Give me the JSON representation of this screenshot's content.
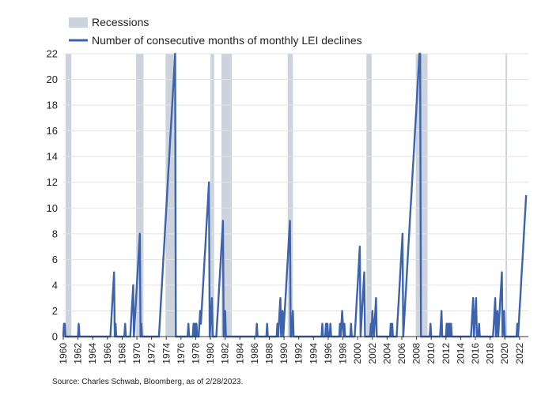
{
  "chart_data": {
    "type": "line",
    "title": "",
    "xlabel": "",
    "ylabel": "",
    "ylim": [
      0,
      22
    ],
    "yticks": [
      "0",
      "2",
      "4",
      "6",
      "8",
      "10",
      "12",
      "14",
      "16",
      "18",
      "20",
      "22"
    ],
    "xlim": [
      1960,
      2023.2
    ],
    "xticks": [
      "1960",
      "1962",
      "1964",
      "1966",
      "1968",
      "1970",
      "1972",
      "1974",
      "1976",
      "1978",
      "1980",
      "1982",
      "1984",
      "1986",
      "1988",
      "1990",
      "1992",
      "1994",
      "1996",
      "1998",
      "2000",
      "2002",
      "2004",
      "2006",
      "2008",
      "2010",
      "2012",
      "2014",
      "2016",
      "2018",
      "2020",
      "2022"
    ],
    "grid": "horizontal",
    "legend": {
      "placement": "top-left",
      "items": [
        {
          "label": "Recessions",
          "color": "#cdd3dc",
          "kind": "band"
        },
        {
          "label": "Number of consecutive months of monthly LEI declines",
          "color": "#3d63ad",
          "kind": "line"
        }
      ]
    },
    "recessions": [
      [
        1960.3,
        1961.1
      ],
      [
        1969.9,
        1970.9
      ],
      [
        1973.9,
        1975.2
      ],
      [
        1980.0,
        1980.5
      ],
      [
        1981.5,
        1982.9
      ],
      [
        1990.5,
        1991.2
      ],
      [
        2001.2,
        2001.9
      ],
      [
        2007.9,
        2009.5
      ],
      [
        2020.1,
        2020.3
      ]
    ],
    "series": [
      {
        "name": "Number of consecutive months of monthly LEI declines",
        "color": "#3d63ad",
        "points": [
          [
            1960.0,
            0
          ],
          [
            1960.1,
            1
          ],
          [
            1960.2,
            1
          ],
          [
            1960.3,
            0
          ],
          [
            1962.0,
            0
          ],
          [
            1962.1,
            1
          ],
          [
            1962.2,
            0
          ],
          [
            1966.4,
            0
          ],
          [
            1966.5,
            1
          ],
          [
            1966.6,
            2
          ],
          [
            1966.7,
            3
          ],
          [
            1966.8,
            4
          ],
          [
            1966.9,
            5
          ],
          [
            1967.0,
            0
          ],
          [
            1967.1,
            1
          ],
          [
            1967.2,
            0
          ],
          [
            1968.3,
            0
          ],
          [
            1968.4,
            1
          ],
          [
            1968.5,
            0
          ],
          [
            1969.1,
            0
          ],
          [
            1969.2,
            1
          ],
          [
            1969.3,
            2
          ],
          [
            1969.4,
            3
          ],
          [
            1969.5,
            4
          ],
          [
            1969.6,
            0
          ],
          [
            1969.7,
            1
          ],
          [
            1969.8,
            2
          ],
          [
            1969.9,
            3
          ],
          [
            1970.0,
            4
          ],
          [
            1970.1,
            5
          ],
          [
            1970.2,
            6
          ],
          [
            1970.3,
            7
          ],
          [
            1970.4,
            8
          ],
          [
            1970.5,
            0
          ],
          [
            1970.6,
            1
          ],
          [
            1970.7,
            0
          ],
          [
            1973.0,
            0
          ],
          [
            1973.1,
            1
          ],
          [
            1973.2,
            2
          ],
          [
            1973.3,
            3
          ],
          [
            1973.4,
            4
          ],
          [
            1973.5,
            5
          ],
          [
            1973.6,
            6
          ],
          [
            1973.7,
            7
          ],
          [
            1973.8,
            8
          ],
          [
            1973.9,
            9
          ],
          [
            1974.0,
            10
          ],
          [
            1974.1,
            11
          ],
          [
            1974.2,
            12
          ],
          [
            1974.3,
            13
          ],
          [
            1974.4,
            14
          ],
          [
            1974.5,
            15
          ],
          [
            1974.6,
            16
          ],
          [
            1974.7,
            17
          ],
          [
            1974.8,
            18
          ],
          [
            1974.9,
            19
          ],
          [
            1975.0,
            20
          ],
          [
            1975.1,
            21
          ],
          [
            1975.2,
            22
          ],
          [
            1975.3,
            0
          ],
          [
            1976.9,
            0
          ],
          [
            1977.0,
            1
          ],
          [
            1977.1,
            0
          ],
          [
            1977.6,
            0
          ],
          [
            1977.7,
            1
          ],
          [
            1977.8,
            0
          ],
          [
            1977.9,
            1
          ],
          [
            1978.0,
            0
          ],
          [
            1978.1,
            1
          ],
          [
            1978.2,
            0
          ],
          [
            1978.4,
            0
          ],
          [
            1978.5,
            1
          ],
          [
            1978.6,
            2
          ],
          [
            1978.7,
            1
          ],
          [
            1978.8,
            2
          ],
          [
            1978.9,
            3
          ],
          [
            1979.0,
            4
          ],
          [
            1979.1,
            5
          ],
          [
            1979.2,
            6
          ],
          [
            1979.3,
            7
          ],
          [
            1979.4,
            8
          ],
          [
            1979.5,
            9
          ],
          [
            1979.6,
            10
          ],
          [
            1979.7,
            11
          ],
          [
            1979.8,
            12
          ],
          [
            1979.9,
            0
          ],
          [
            1980.0,
            1
          ],
          [
            1980.1,
            2
          ],
          [
            1980.2,
            3
          ],
          [
            1980.3,
            0
          ],
          [
            1980.8,
            0
          ],
          [
            1980.9,
            1
          ],
          [
            1981.0,
            2
          ],
          [
            1981.1,
            3
          ],
          [
            1981.2,
            4
          ],
          [
            1981.3,
            5
          ],
          [
            1981.4,
            6
          ],
          [
            1981.5,
            7
          ],
          [
            1981.6,
            8
          ],
          [
            1981.7,
            9
          ],
          [
            1981.8,
            0
          ],
          [
            1981.9,
            1
          ],
          [
            1982.0,
            2
          ],
          [
            1982.1,
            0
          ],
          [
            1986.2,
            0
          ],
          [
            1986.3,
            1
          ],
          [
            1986.4,
            0
          ],
          [
            1987.6,
            0
          ],
          [
            1987.7,
            1
          ],
          [
            1987.8,
            0
          ],
          [
            1989.0,
            0
          ],
          [
            1989.1,
            1
          ],
          [
            1989.2,
            0
          ],
          [
            1989.3,
            1
          ],
          [
            1989.4,
            2
          ],
          [
            1989.5,
            3
          ],
          [
            1989.6,
            0
          ],
          [
            1989.7,
            1
          ],
          [
            1989.8,
            2
          ],
          [
            1989.9,
            0
          ],
          [
            1990.0,
            1
          ],
          [
            1990.1,
            2
          ],
          [
            1990.2,
            3
          ],
          [
            1990.3,
            4
          ],
          [
            1990.4,
            5
          ],
          [
            1990.5,
            6
          ],
          [
            1990.6,
            7
          ],
          [
            1990.7,
            8
          ],
          [
            1990.8,
            9
          ],
          [
            1990.9,
            0
          ],
          [
            1991.0,
            0
          ],
          [
            1991.1,
            1
          ],
          [
            1991.2,
            2
          ],
          [
            1991.3,
            0
          ],
          [
            1995.1,
            0
          ],
          [
            1995.2,
            1
          ],
          [
            1995.3,
            0
          ],
          [
            1995.6,
            0
          ],
          [
            1995.7,
            1
          ],
          [
            1995.8,
            0
          ],
          [
            1995.9,
            1
          ],
          [
            1996.0,
            0
          ],
          [
            1996.2,
            0
          ],
          [
            1996.3,
            1
          ],
          [
            1996.4,
            0
          ],
          [
            1997.5,
            0
          ],
          [
            1997.6,
            1
          ],
          [
            1997.7,
            0
          ],
          [
            1997.8,
            1
          ],
          [
            1997.9,
            2
          ],
          [
            1998.0,
            1
          ],
          [
            1998.1,
            0
          ],
          [
            1998.2,
            1
          ],
          [
            1998.3,
            0
          ],
          [
            1999.0,
            0
          ],
          [
            1999.1,
            1
          ],
          [
            1999.2,
            0
          ],
          [
            1999.6,
            0
          ],
          [
            1999.7,
            1
          ],
          [
            1999.8,
            2
          ],
          [
            1999.9,
            3
          ],
          [
            2000.0,
            4
          ],
          [
            2000.1,
            5
          ],
          [
            2000.2,
            6
          ],
          [
            2000.3,
            7
          ],
          [
            2000.4,
            0
          ],
          [
            2000.5,
            1
          ],
          [
            2000.6,
            2
          ],
          [
            2000.7,
            3
          ],
          [
            2000.8,
            4
          ],
          [
            2000.9,
            5
          ],
          [
            2001.0,
            0
          ],
          [
            2001.7,
            0
          ],
          [
            2001.8,
            1
          ],
          [
            2001.9,
            0
          ],
          [
            2002.0,
            2
          ],
          [
            2002.1,
            1
          ],
          [
            2002.2,
            0
          ],
          [
            2002.3,
            1
          ],
          [
            2002.4,
            2
          ],
          [
            2002.5,
            3
          ],
          [
            2002.6,
            0
          ],
          [
            2004.4,
            0
          ],
          [
            2004.5,
            1
          ],
          [
            2004.6,
            0
          ],
          [
            2004.7,
            1
          ],
          [
            2004.8,
            0
          ],
          [
            2005.3,
            0
          ],
          [
            2005.4,
            1
          ],
          [
            2005.5,
            2
          ],
          [
            2005.6,
            3
          ],
          [
            2005.7,
            4
          ],
          [
            2005.8,
            5
          ],
          [
            2005.9,
            6
          ],
          [
            2006.0,
            7
          ],
          [
            2006.1,
            8
          ],
          [
            2006.2,
            0
          ],
          [
            2006.3,
            1
          ],
          [
            2006.4,
            2
          ],
          [
            2006.5,
            3
          ],
          [
            2006.6,
            4
          ],
          [
            2006.7,
            5
          ],
          [
            2006.8,
            6
          ],
          [
            2006.9,
            7
          ],
          [
            2007.0,
            8
          ],
          [
            2007.1,
            9
          ],
          [
            2007.2,
            10
          ],
          [
            2007.3,
            11
          ],
          [
            2007.4,
            12
          ],
          [
            2007.5,
            13
          ],
          [
            2007.6,
            14
          ],
          [
            2007.7,
            15
          ],
          [
            2007.8,
            16
          ],
          [
            2007.9,
            17
          ],
          [
            2008.0,
            18
          ],
          [
            2008.1,
            19
          ],
          [
            2008.2,
            20
          ],
          [
            2008.3,
            21
          ],
          [
            2008.4,
            22
          ],
          [
            2008.5,
            22
          ],
          [
            2008.6,
            0
          ],
          [
            2009.8,
            0
          ],
          [
            2009.9,
            1
          ],
          [
            2010.0,
            0
          ],
          [
            2011.2,
            0
          ],
          [
            2011.3,
            1
          ],
          [
            2011.4,
            2
          ],
          [
            2011.5,
            0
          ],
          [
            2012.0,
            0
          ],
          [
            2012.1,
            1
          ],
          [
            2012.2,
            0
          ],
          [
            2012.3,
            1
          ],
          [
            2012.4,
            0
          ],
          [
            2012.5,
            1
          ],
          [
            2012.6,
            0
          ],
          [
            2012.7,
            1
          ],
          [
            2012.8,
            0
          ],
          [
            2015.4,
            0
          ],
          [
            2015.5,
            1
          ],
          [
            2015.6,
            2
          ],
          [
            2015.7,
            3
          ],
          [
            2015.8,
            0
          ],
          [
            2015.9,
            1
          ],
          [
            2016.0,
            2
          ],
          [
            2016.1,
            3
          ],
          [
            2016.2,
            0
          ],
          [
            2016.4,
            0
          ],
          [
            2016.5,
            1
          ],
          [
            2016.6,
            0
          ],
          [
            2018.4,
            0
          ],
          [
            2018.5,
            1
          ],
          [
            2018.6,
            2
          ],
          [
            2018.7,
            3
          ],
          [
            2018.8,
            0
          ],
          [
            2018.9,
            1
          ],
          [
            2019.0,
            2
          ],
          [
            2019.1,
            0
          ],
          [
            2019.2,
            1
          ],
          [
            2019.3,
            2
          ],
          [
            2019.4,
            3
          ],
          [
            2019.5,
            4
          ],
          [
            2019.6,
            5
          ],
          [
            2019.7,
            0
          ],
          [
            2019.8,
            1
          ],
          [
            2019.9,
            2
          ],
          [
            2020.0,
            0
          ],
          [
            2021.6,
            0
          ],
          [
            2021.7,
            1
          ],
          [
            2021.8,
            0
          ],
          [
            2021.9,
            1
          ],
          [
            2022.0,
            2
          ],
          [
            2022.1,
            3
          ],
          [
            2022.2,
            4
          ],
          [
            2022.3,
            5
          ],
          [
            2022.4,
            6
          ],
          [
            2022.5,
            7
          ],
          [
            2022.6,
            8
          ],
          [
            2022.7,
            9
          ],
          [
            2022.8,
            10
          ],
          [
            2022.9,
            11
          ]
        ]
      }
    ]
  },
  "source_note": "Source: Charles Schwab, Bloomberg, as of 2/28/2023."
}
